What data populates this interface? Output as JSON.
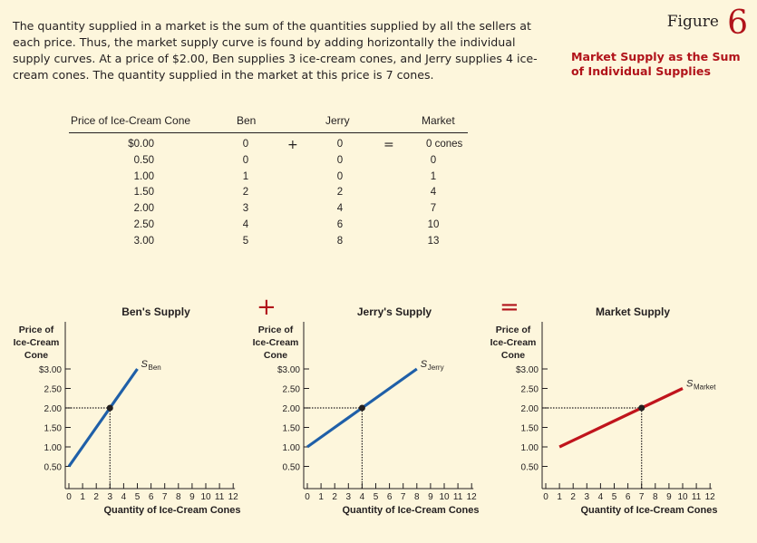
{
  "intro_text": "The quantity supplied in a market is the sum of the quantities supplied by all the sellers at each price. Thus, the market supply curve is found by adding horizontally the individual supply curves. At a price of $2.00, Ben supplies 3 ice-cream cones, and Jerry supplies 4 ice-cream cones. The quantity supplied in the market at this price is 7 cones.",
  "figure": {
    "word": "Figure",
    "number": "6",
    "title": "Market Supply as the Sum of Individual Supplies"
  },
  "table": {
    "headers": {
      "price": "Price of Ice-Cream Cone",
      "ben": "Ben",
      "jerry": "Jerry",
      "market": "Market"
    },
    "plus": "+",
    "equals": "=",
    "rows": [
      {
        "price": "$0.00",
        "ben": "0",
        "jerry": "0",
        "market": "0 cones"
      },
      {
        "price": "0.50",
        "ben": "0",
        "jerry": "0",
        "market": "0"
      },
      {
        "price": "1.00",
        "ben": "1",
        "jerry": "0",
        "market": "1"
      },
      {
        "price": "1.50",
        "ben": "2",
        "jerry": "2",
        "market": "4"
      },
      {
        "price": "2.00",
        "ben": "3",
        "jerry": "4",
        "market": "7"
      },
      {
        "price": "2.50",
        "ben": "4",
        "jerry": "6",
        "market": "10"
      },
      {
        "price": "3.00",
        "ben": "5",
        "jerry": "8",
        "market": "13"
      }
    ]
  },
  "operators": {
    "plus": "+",
    "equals": "="
  },
  "chart_data": [
    {
      "type": "line",
      "title": "Ben's Supply",
      "ylabel": [
        "Price of",
        "Ice-Cream",
        "Cone"
      ],
      "xlabel": "Quantity of Ice-Cream Cones",
      "xticks": [
        0,
        1,
        2,
        3,
        4,
        5,
        6,
        7,
        8,
        9,
        10,
        11,
        12
      ],
      "yticks": [
        "$3.00",
        "2.50",
        "2.00",
        "1.50",
        "1.00",
        "0.50"
      ],
      "ytick_values": [
        3.0,
        2.5,
        2.0,
        1.5,
        1.0,
        0.5
      ],
      "xlim": [
        0,
        12
      ],
      "ylim": [
        0.5,
        3.0
      ],
      "series_label": "S",
      "series_sub": "Ben",
      "x": [
        0,
        1,
        2,
        3,
        4,
        5
      ],
      "y": [
        0.5,
        1.0,
        1.5,
        2.0,
        2.5,
        3.0
      ],
      "highlight": {
        "x": 3,
        "y": 2.0
      },
      "color": "#1f5fa8"
    },
    {
      "type": "line",
      "title": "Jerry's Supply",
      "ylabel": [
        "Price of",
        "Ice-Cream",
        "Cone"
      ],
      "xlabel": "Quantity of Ice-Cream Cones",
      "xticks": [
        0,
        1,
        2,
        3,
        4,
        5,
        6,
        7,
        8,
        9,
        10,
        11,
        12
      ],
      "yticks": [
        "$3.00",
        "2.50",
        "2.00",
        "1.50",
        "1.00",
        "0.50"
      ],
      "ytick_values": [
        3.0,
        2.5,
        2.0,
        1.5,
        1.0,
        0.5
      ],
      "xlim": [
        0,
        12
      ],
      "ylim": [
        0.5,
        3.0
      ],
      "series_label": "S",
      "series_sub": "Jerry",
      "x": [
        0,
        2,
        4,
        6,
        8
      ],
      "y": [
        1.0,
        1.5,
        2.0,
        2.5,
        3.0
      ],
      "highlight": {
        "x": 4,
        "y": 2.0
      },
      "color": "#1f5fa8"
    },
    {
      "type": "line",
      "title": "Market Supply",
      "ylabel": [
        "Price of",
        "Ice-Cream",
        "Cone"
      ],
      "xlabel": "Quantity of Ice-Cream Cones",
      "xticks": [
        0,
        1,
        2,
        3,
        4,
        5,
        6,
        7,
        8,
        9,
        10,
        11,
        12
      ],
      "yticks": [
        "$3.00",
        "2.50",
        "2.00",
        "1.50",
        "1.00",
        "0.50"
      ],
      "ytick_values": [
        3.0,
        2.5,
        2.0,
        1.5,
        1.0,
        0.5
      ],
      "xlim": [
        0,
        12
      ],
      "ylim": [
        0.5,
        3.0
      ],
      "series_label": "S",
      "series_sub": "Market",
      "x": [
        1,
        4,
        7,
        10
      ],
      "y": [
        1.0,
        1.5,
        2.0,
        2.5
      ],
      "highlight": {
        "x": 7,
        "y": 2.0
      },
      "color": "#c0141c"
    }
  ]
}
